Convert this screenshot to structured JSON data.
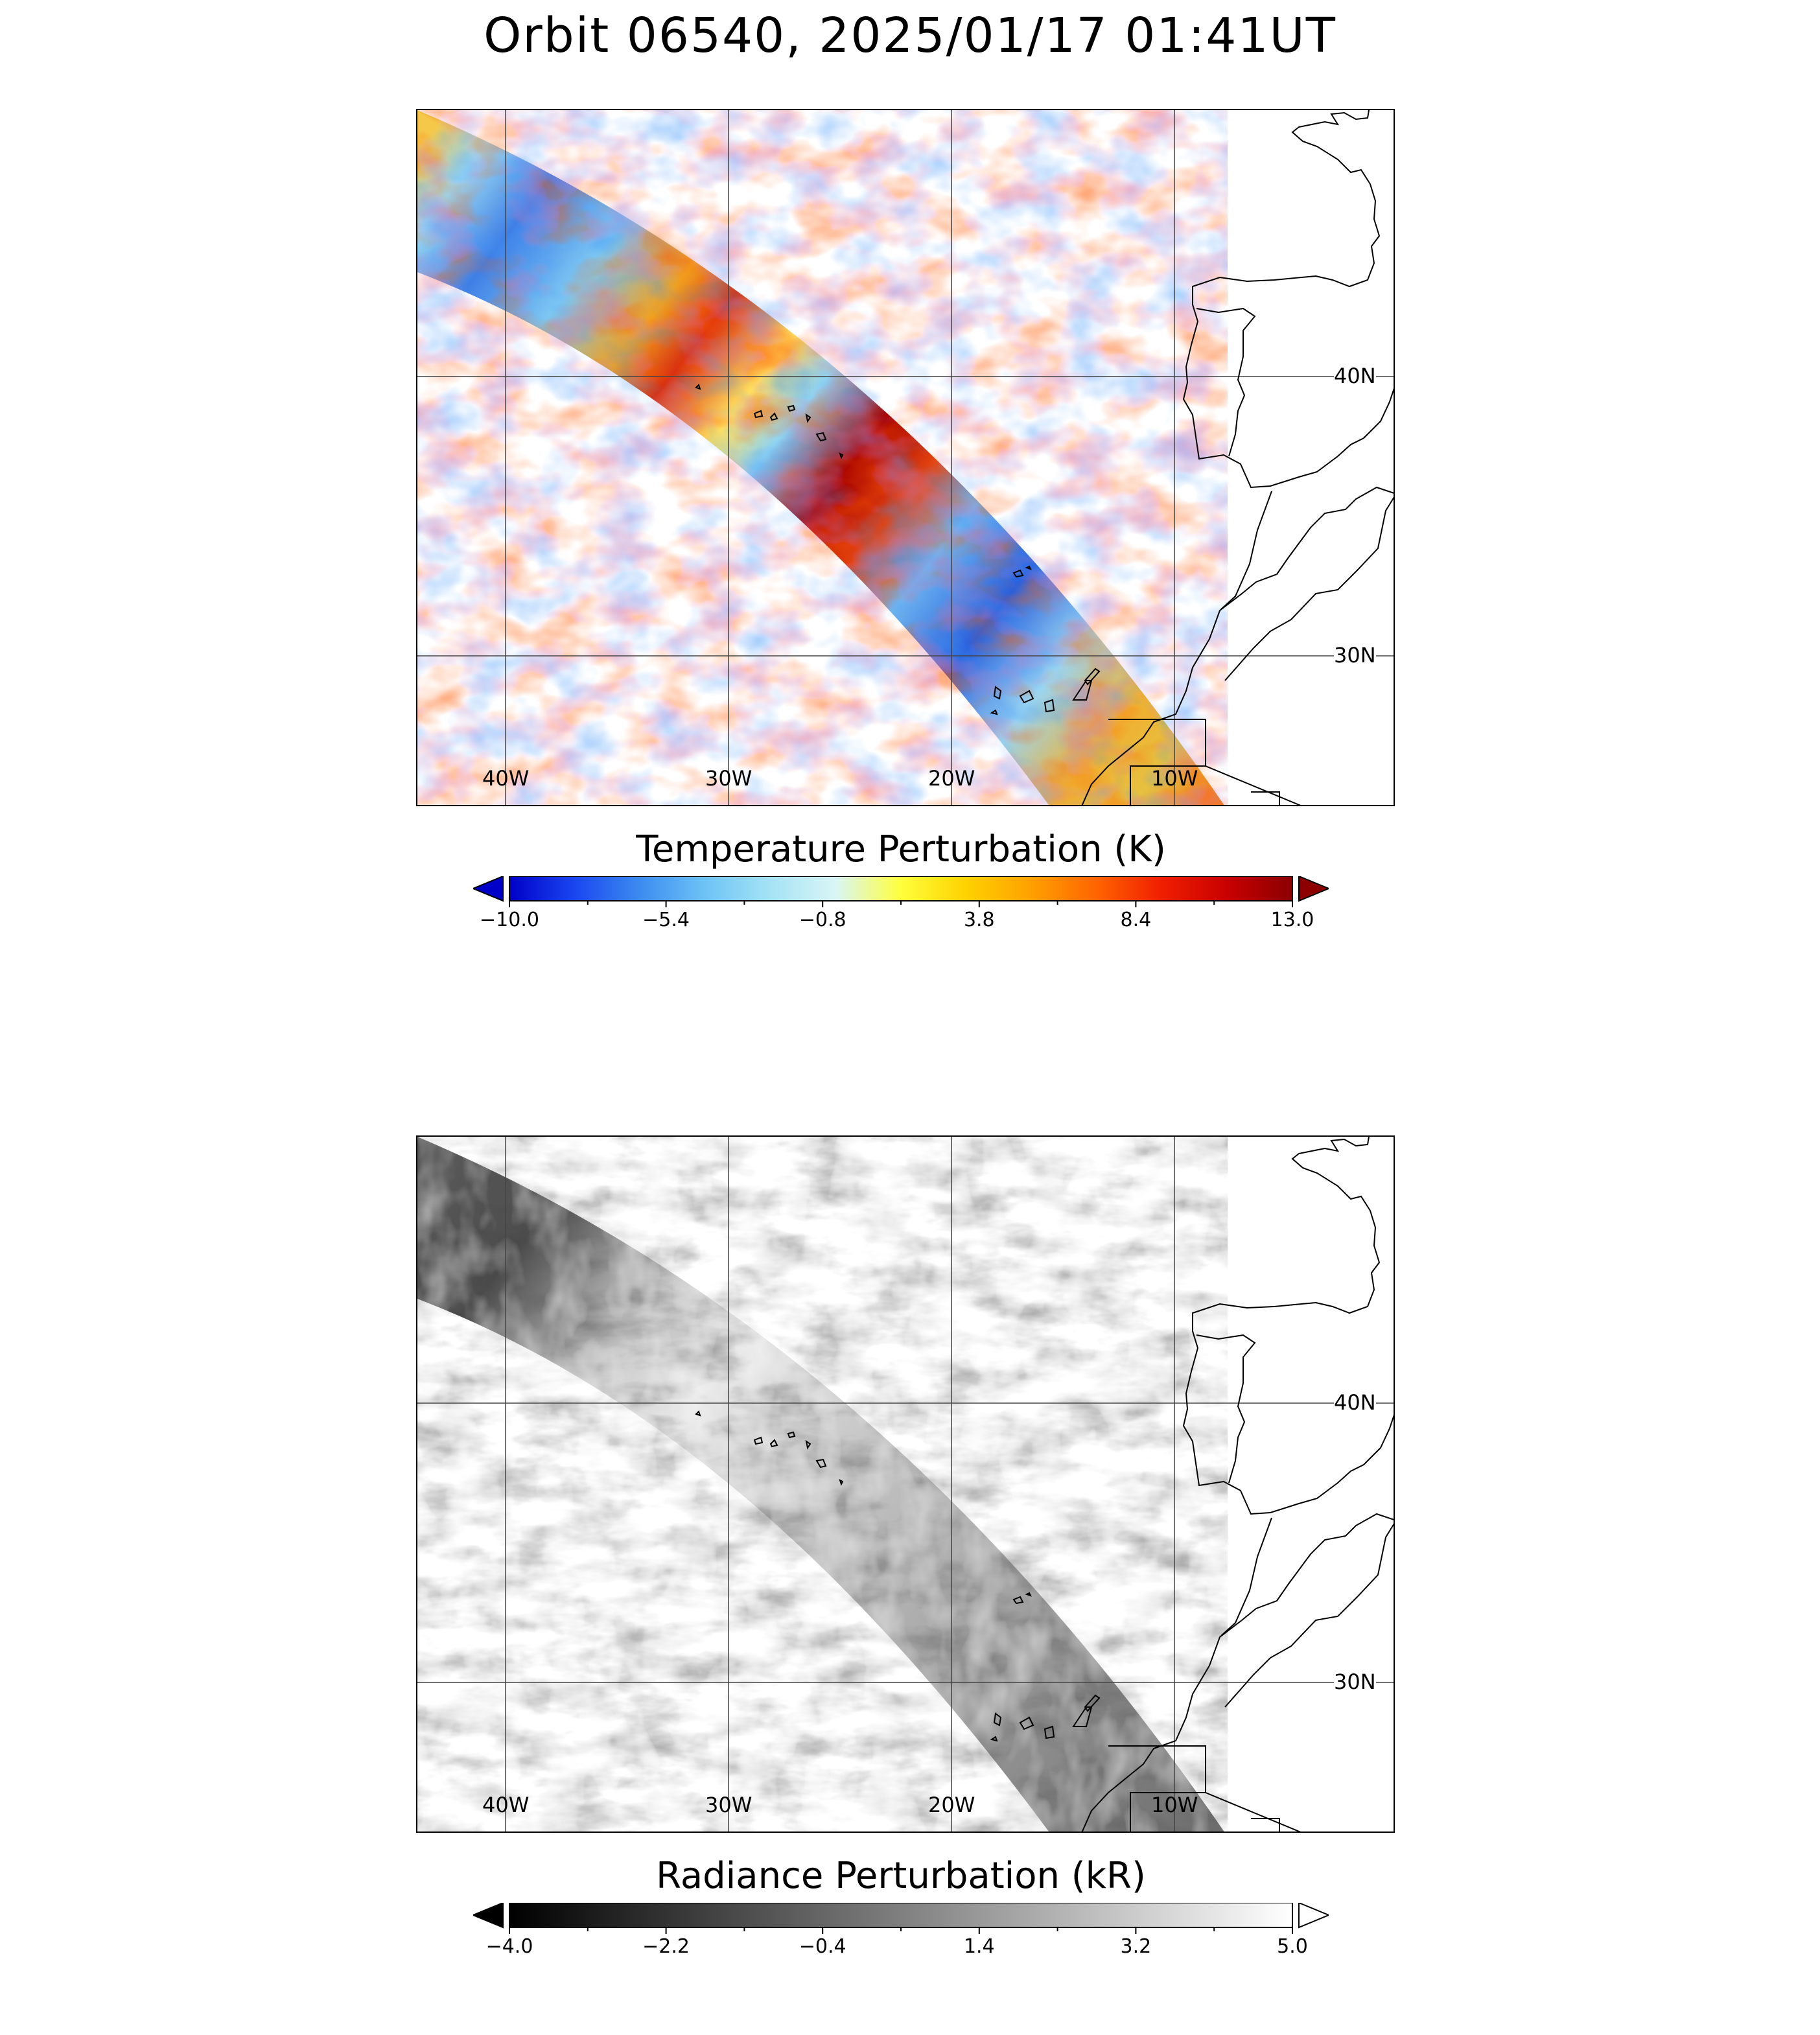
{
  "title": "Orbit 06540, 2025/01/17 01:41UT",
  "chart_data": [
    {
      "type": "heatmap",
      "panel": "top",
      "quantity": "Temperature Perturbation (K)",
      "colorbar": {
        "label": "Temperature Perturbation (K)",
        "min": -10.0,
        "max": 13.0,
        "ticks": [
          "−10.0",
          "−5.4",
          "−0.8",
          "3.8",
          "8.4",
          "13.0"
        ],
        "extend": "both",
        "colors": [
          "#0000c8",
          "#1a46f0",
          "#3c8cf0",
          "#6ec3f5",
          "#a5e3f5",
          "#d9f5f5",
          "#ffff3c",
          "#ffd200",
          "#ffa000",
          "#ff6400",
          "#f01e00",
          "#c80000",
          "#8c0000"
        ]
      },
      "x_axis": {
        "labels": [
          "40W",
          "30W",
          "20W",
          "10W"
        ],
        "values": [
          -40,
          -30,
          -20,
          -10
        ]
      },
      "y_axis": {
        "labels": [
          "40N",
          "30N"
        ],
        "values": [
          40,
          30
        ]
      },
      "grid": true,
      "coastlines": true
    },
    {
      "type": "heatmap",
      "panel": "bottom",
      "quantity": "Radiance Perturbation (kR)",
      "colorbar": {
        "label": "Radiance Perturbation (kR)",
        "min": -4.0,
        "max": 5.0,
        "ticks": [
          "−4.0",
          "−2.2",
          "−0.4",
          "1.4",
          "3.2",
          "5.0"
        ],
        "extend": "both",
        "colors": [
          "#000000",
          "#ffffff"
        ]
      },
      "x_axis": {
        "labels": [
          "40W",
          "30W",
          "20W",
          "10W"
        ],
        "values": [
          -40,
          -30,
          -20,
          -10
        ]
      },
      "y_axis": {
        "labels": [
          "40N",
          "30N"
        ],
        "values": [
          40,
          30
        ]
      },
      "grid": true,
      "coastlines": true
    }
  ]
}
